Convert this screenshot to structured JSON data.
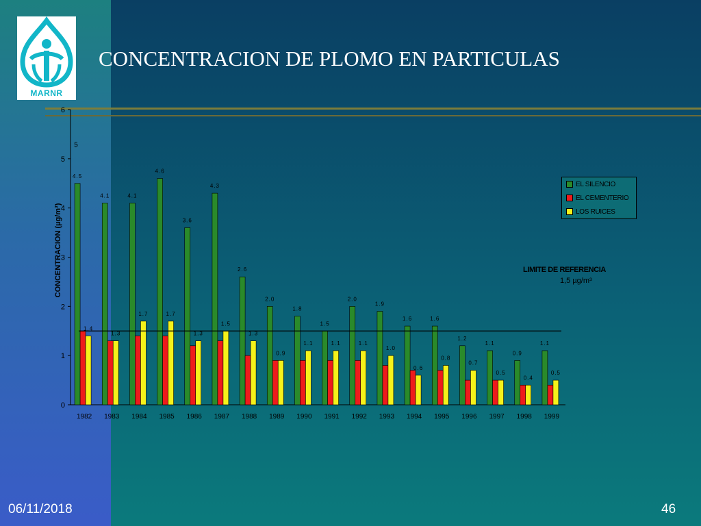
{
  "slide": {
    "title": "CONCENTRACION DE PLOMO EN PARTICULAS",
    "date": "06/11/2018",
    "page_number": "46",
    "logo_text": "MARNR"
  },
  "colors": {
    "el_silencio": "#2a8a2a",
    "el_cementerio": "#ee1b1b",
    "los_ruices": "#f5f21a",
    "reference_line": "#000000",
    "logo": "#12b6c8"
  },
  "reference": {
    "label": "LIMITE DE REFERENCIA",
    "value_text": "1,5 µg/m³",
    "value": 1.5
  },
  "chart_data": {
    "type": "bar",
    "ylabel": "CONCENTRACION (µg/m³)",
    "xlabel": "",
    "ylim": [
      0,
      6
    ],
    "yticks": [
      0,
      1,
      2,
      3,
      4,
      5,
      6
    ],
    "legend_position": "right",
    "categories": [
      "1982",
      "1983",
      "1984",
      "1985",
      "1986",
      "1987",
      "1988",
      "1989",
      "1990",
      "1991",
      "1992",
      "1993",
      "1994",
      "1995",
      "1996",
      "1997",
      "1998",
      "1999"
    ],
    "series": [
      {
        "name": "EL SILENCIO",
        "values": [
          4.5,
          4.1,
          4.1,
          4.6,
          3.6,
          4.3,
          2.6,
          2.0,
          1.8,
          1.5,
          2.0,
          1.9,
          1.6,
          1.6,
          1.2,
          1.1,
          0.9,
          1.1
        ],
        "labels": [
          "4.5",
          "4.1",
          "4.1",
          "4.6",
          "3.6",
          "4.3",
          "2.6",
          "2.0",
          "1.8",
          "1.5",
          "2.0",
          "1.9",
          "1.6",
          "1.6",
          "1.2",
          "1.1",
          "0.9",
          "1.1"
        ]
      },
      {
        "name": "EL CEMENTERIO",
        "values": [
          1.5,
          1.3,
          1.4,
          1.4,
          1.2,
          1.3,
          1.0,
          0.9,
          0.9,
          0.9,
          0.9,
          0.8,
          0.7,
          0.7,
          0.5,
          0.5,
          0.4,
          0.4
        ],
        "labels": [
          "",
          "",
          "",
          "",
          "",
          "",
          "",
          "",
          "",
          "",
          "",
          "",
          "",
          "",
          "",
          "",
          "",
          ""
        ]
      },
      {
        "name": "LOS RUICES",
        "values": [
          1.4,
          1.3,
          1.7,
          1.7,
          1.3,
          1.5,
          1.3,
          0.9,
          1.1,
          1.1,
          1.1,
          1.0,
          0.6,
          0.8,
          0.7,
          0.5,
          0.4,
          0.5
        ],
        "labels": [
          "1.4",
          "1.3",
          "1.7",
          "1.7",
          "1.3",
          "1.5",
          "1.3",
          "0.9",
          "1.1",
          "1.1",
          "1.1",
          "1.0",
          "0.6",
          "0.8",
          "0.7",
          "0.5",
          "0.4",
          "0.5"
        ]
      }
    ],
    "annotations": [
      {
        "text": "5",
        "y": 5.3
      }
    ]
  }
}
